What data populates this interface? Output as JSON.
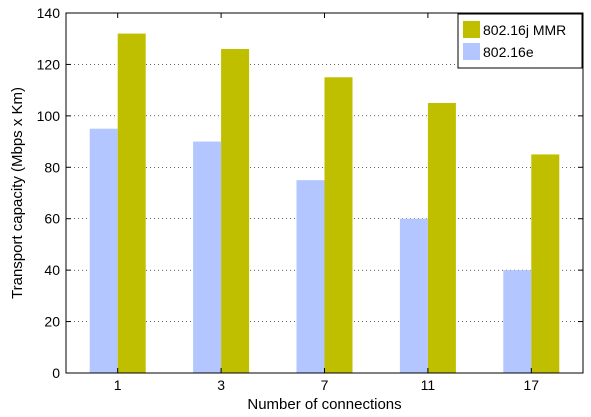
{
  "chart_data": {
    "type": "bar",
    "xlabel": "Number of connections",
    "ylabel": "Transport capacity (Mbps x Km)",
    "ylim": [
      0,
      140
    ],
    "yticks": [
      0,
      20,
      40,
      60,
      80,
      100,
      120,
      140
    ],
    "categories": [
      "1",
      "3",
      "7",
      "11",
      "17"
    ],
    "grid": "dotted",
    "legend_position": "top-right",
    "series": [
      {
        "name": "802.16e",
        "values": [
          95,
          90,
          75,
          60,
          40
        ],
        "color": "#b3c6ff"
      },
      {
        "name": "802.16j MMR",
        "values": [
          132,
          126,
          115,
          105,
          85
        ],
        "color": "#bfbf00"
      }
    ],
    "legend_order": [
      1,
      0
    ]
  }
}
